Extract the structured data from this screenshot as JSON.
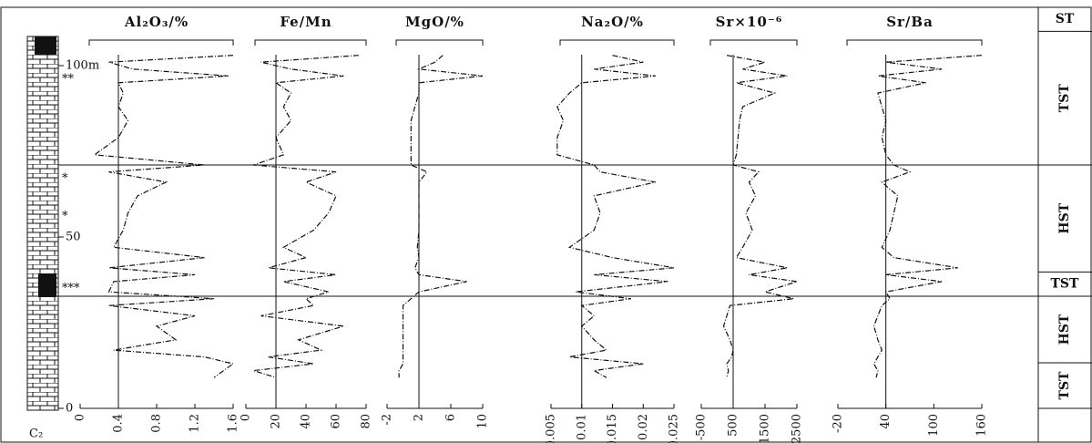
{
  "depths": [
    103,
    101,
    99,
    97,
    95,
    92,
    88,
    84,
    79,
    74,
    71,
    69,
    66,
    62,
    57,
    52,
    47,
    44,
    41,
    39,
    37,
    34,
    32,
    30,
    27,
    24,
    20,
    17,
    15,
    13,
    11,
    9
  ],
  "depth_axis": {
    "ylim": [
      0,
      110
    ],
    "yticks": [
      {
        "value": 100,
        "label": "100m"
      },
      50,
      0
    ]
  },
  "column_label": "C₂",
  "marks": [
    {
      "depth": 96,
      "label": "**"
    },
    {
      "depth": 67,
      "label": "*"
    },
    {
      "depth": 56,
      "label": "*"
    },
    {
      "depth": 35,
      "label": "***"
    }
  ],
  "boundaries": [
    71,
    32.7
  ],
  "sequences": [
    {
      "label": "ST",
      "top": 118,
      "bottom": 110
    },
    {
      "label": "TST",
      "top": 110,
      "bottom": 71
    },
    {
      "label": "HST",
      "top": 71,
      "bottom": 39.8
    },
    {
      "label": "TST",
      "top": 39.8,
      "bottom": 32.7
    },
    {
      "label": "HST",
      "top": 32.7,
      "bottom": 13.3
    },
    {
      "label": "TST",
      "top": 13.3,
      "bottom": 0
    }
  ],
  "chart_data": [
    {
      "type": "line",
      "title": "Al₂O₃/%",
      "xlim": [
        0,
        1.6
      ],
      "xticks": [
        0,
        0.4,
        0.8,
        1.2,
        1.6
      ],
      "reference": 0.4,
      "color": "#111",
      "values": [
        1.6,
        0.3,
        0.55,
        1.55,
        0.4,
        0.45,
        0.4,
        0.5,
        0.4,
        0.15,
        1.3,
        0.3,
        0.9,
        0.6,
        0.5,
        0.45,
        0.35,
        1.3,
        0.3,
        1.2,
        0.35,
        0.3,
        1.4,
        0.3,
        1.2,
        0.8,
        1.0,
        0.35,
        1.3,
        1.6,
        1.5,
        1.4
      ]
    },
    {
      "type": "line",
      "title": "Fe/Mn",
      "xlim": [
        0,
        80
      ],
      "xticks": [
        0,
        20,
        40,
        60,
        80
      ],
      "reference": 20,
      "color": "#111",
      "values": [
        75,
        10,
        30,
        65,
        20,
        30,
        25,
        30,
        20,
        25,
        5,
        60,
        40,
        60,
        55,
        45,
        25,
        40,
        15,
        60,
        25,
        55,
        40,
        45,
        10,
        65,
        35,
        50,
        15,
        45,
        5,
        20
      ]
    },
    {
      "type": "line",
      "title": "MgO/%",
      "xlim": [
        -2,
        10
      ],
      "xticks": [
        -2,
        2,
        6,
        10
      ],
      "reference": 2,
      "color": "#111",
      "values": [
        5,
        4,
        2,
        10,
        2,
        2,
        1.5,
        1,
        1,
        1,
        1,
        3,
        2,
        2,
        2,
        2,
        1.8,
        2,
        1.5,
        2,
        8,
        2,
        1,
        0,
        0,
        0,
        0,
        0,
        0,
        0,
        -0.5,
        -0.5
      ]
    },
    {
      "type": "line",
      "title": "Na₂O/%",
      "xlim": [
        0.005,
        0.025
      ],
      "xticks": [
        0.005,
        0.01,
        0.015,
        0.02,
        0.025
      ],
      "reference": 0.01,
      "color": "#111",
      "values": [
        0.015,
        0.02,
        0.012,
        0.022,
        0.01,
        0.008,
        0.006,
        0.007,
        0.006,
        0.006,
        0.012,
        0.013,
        0.022,
        0.012,
        0.013,
        0.012,
        0.008,
        0.015,
        0.025,
        0.012,
        0.024,
        0.009,
        0.018,
        0.01,
        0.012,
        0.01,
        0.012,
        0.014,
        0.008,
        0.02,
        0.012,
        0.014
      ]
    },
    {
      "type": "line",
      "title": "Sr×10⁻⁶",
      "xlim": [
        -500,
        2500
      ],
      "xticks": [
        -500,
        500,
        1500,
        2500
      ],
      "reference": 500,
      "color": "#111",
      "values": [
        300,
        1500,
        800,
        2200,
        600,
        1800,
        800,
        700,
        650,
        600,
        500,
        1300,
        1000,
        1200,
        900,
        1100,
        800,
        600,
        2200,
        1000,
        2500,
        1500,
        2400,
        400,
        300,
        200,
        400,
        500,
        450,
        300,
        350,
        300
      ]
    },
    {
      "type": "line",
      "title": "Sr/Ba",
      "xlim": [
        -20,
        160
      ],
      "xticks": [
        -20,
        40,
        100,
        160
      ],
      "reference": 40,
      "color": "#111",
      "values": [
        160,
        40,
        110,
        30,
        90,
        30,
        35,
        40,
        35,
        40,
        50,
        70,
        35,
        55,
        50,
        45,
        35,
        50,
        130,
        40,
        110,
        40,
        45,
        35,
        30,
        25,
        30,
        35,
        30,
        25,
        30,
        28
      ]
    }
  ]
}
